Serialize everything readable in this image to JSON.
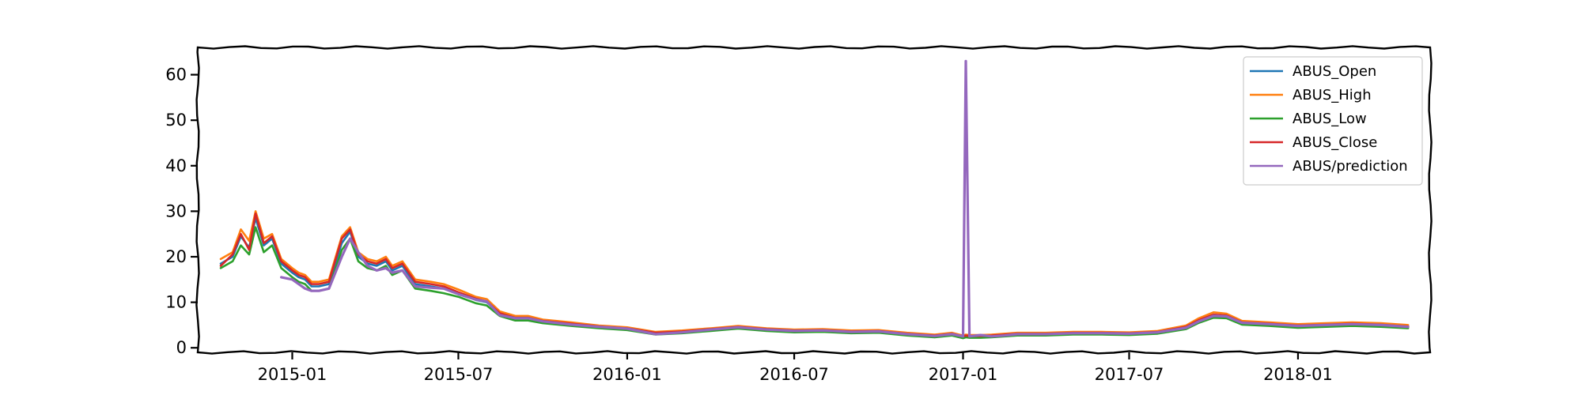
{
  "chart_data": {
    "type": "line",
    "title": "",
    "xlabel": "",
    "ylabel": "",
    "x_axis": "date",
    "xlim": [
      "2014-09-20",
      "2018-05-25"
    ],
    "ylim": [
      -1,
      66
    ],
    "x_ticks": [
      "2015-01",
      "2015-07",
      "2016-01",
      "2016-07",
      "2017-01",
      "2017-07",
      "2018-01"
    ],
    "y_ticks": [
      0,
      10,
      20,
      30,
      40,
      50,
      60
    ],
    "grid": false,
    "legend_position": "top-right",
    "style": "xkcd sketch",
    "dates": [
      "2014-10-15",
      "2014-10-28",
      "2014-11-06",
      "2014-11-15",
      "2014-11-22",
      "2014-12-01",
      "2014-12-10",
      "2014-12-20",
      "2015-01-01",
      "2015-01-08",
      "2015-01-15",
      "2015-01-22",
      "2015-01-30",
      "2015-02-10",
      "2015-02-24",
      "2015-03-05",
      "2015-03-14",
      "2015-03-24",
      "2015-04-03",
      "2015-04-13",
      "2015-04-20",
      "2015-05-01",
      "2015-05-15",
      "2015-06-01",
      "2015-06-15",
      "2015-07-01",
      "2015-07-20",
      "2015-08-01",
      "2015-08-15",
      "2015-09-01",
      "2015-09-15",
      "2015-10-01",
      "2015-11-01",
      "2015-12-01",
      "2016-01-01",
      "2016-02-01",
      "2016-03-01",
      "2016-04-01",
      "2016-05-01",
      "2016-06-01",
      "2016-07-01",
      "2016-08-01",
      "2016-09-01",
      "2016-10-01",
      "2016-11-01",
      "2016-12-01",
      "2016-12-20",
      "2017-01-01",
      "2017-01-04",
      "2017-01-08",
      "2017-01-20",
      "2017-02-01",
      "2017-02-15",
      "2017-03-01",
      "2017-04-01",
      "2017-05-01",
      "2017-06-01",
      "2017-07-01",
      "2017-08-01",
      "2017-09-01",
      "2017-09-15",
      "2017-10-01",
      "2017-10-15",
      "2017-11-01",
      "2017-12-01",
      "2018-01-01",
      "2018-02-01",
      "2018-03-01",
      "2018-04-01",
      "2018-05-01"
    ],
    "series": [
      {
        "name": "ABUS_Open",
        "color": "#1f77b4",
        "values": [
          18.5,
          20.0,
          24.5,
          22.0,
          28.5,
          22.5,
          24.0,
          18.5,
          16.5,
          15.5,
          15.0,
          13.5,
          13.5,
          14.0,
          23.0,
          25.5,
          20.0,
          18.5,
          18.0,
          19.0,
          17.0,
          18.0,
          14.0,
          13.5,
          13.0,
          12.0,
          10.5,
          10.0,
          7.5,
          6.5,
          6.5,
          5.8,
          5.2,
          4.6,
          4.2,
          3.2,
          3.5,
          4.0,
          4.5,
          4.0,
          3.7,
          3.8,
          3.5,
          3.6,
          3.0,
          2.6,
          3.0,
          2.4,
          2.6,
          2.5,
          2.5,
          2.6,
          2.8,
          3.0,
          3.0,
          3.2,
          3.2,
          3.1,
          3.4,
          4.5,
          6.0,
          7.2,
          7.0,
          5.5,
          5.2,
          4.8,
          5.0,
          5.2,
          5.0,
          4.6
        ]
      },
      {
        "name": "ABUS_High",
        "color": "#ff7f0e",
        "values": [
          19.5,
          21.0,
          26.0,
          23.5,
          30.0,
          24.0,
          25.0,
          19.5,
          17.5,
          16.5,
          16.0,
          14.5,
          14.5,
          15.0,
          24.5,
          26.5,
          21.0,
          19.5,
          19.0,
          20.0,
          18.0,
          19.0,
          15.0,
          14.5,
          14.0,
          12.8,
          11.2,
          10.7,
          8.0,
          7.0,
          7.0,
          6.2,
          5.6,
          4.9,
          4.5,
          3.5,
          3.8,
          4.3,
          4.8,
          4.3,
          4.0,
          4.1,
          3.8,
          3.9,
          3.3,
          2.9,
          3.3,
          2.7,
          2.9,
          2.8,
          2.8,
          2.9,
          3.1,
          3.3,
          3.3,
          3.5,
          3.5,
          3.4,
          3.7,
          4.9,
          6.5,
          7.8,
          7.5,
          5.9,
          5.6,
          5.2,
          5.4,
          5.6,
          5.4,
          5.0
        ]
      },
      {
        "name": "ABUS_Low",
        "color": "#2ca02c",
        "values": [
          17.5,
          19.0,
          22.5,
          20.5,
          26.5,
          21.0,
          22.5,
          17.5,
          15.5,
          14.5,
          14.0,
          12.5,
          12.5,
          13.0,
          21.5,
          24.0,
          19.0,
          17.5,
          17.0,
          18.0,
          16.0,
          17.0,
          13.0,
          12.5,
          12.0,
          11.2,
          9.8,
          9.3,
          7.0,
          6.0,
          6.0,
          5.4,
          4.8,
          4.3,
          3.9,
          2.9,
          3.2,
          3.7,
          4.2,
          3.7,
          3.4,
          3.5,
          3.2,
          3.3,
          2.7,
          2.3,
          2.7,
          2.1,
          2.3,
          2.2,
          2.2,
          2.3,
          2.5,
          2.7,
          2.7,
          2.9,
          2.9,
          2.8,
          3.1,
          4.1,
          5.5,
          6.6,
          6.5,
          5.1,
          4.8,
          4.4,
          4.6,
          4.8,
          4.6,
          4.3
        ]
      },
      {
        "name": "ABUS_Close",
        "color": "#d62728",
        "values": [
          18.0,
          20.5,
          25.0,
          21.5,
          29.5,
          23.0,
          24.5,
          19.0,
          17.0,
          16.0,
          15.5,
          14.0,
          14.0,
          14.5,
          24.0,
          26.0,
          20.5,
          19.0,
          18.5,
          19.5,
          17.5,
          18.5,
          14.5,
          14.0,
          13.5,
          12.2,
          10.8,
          10.2,
          7.6,
          6.6,
          6.6,
          5.9,
          5.3,
          4.7,
          4.3,
          3.3,
          3.6,
          4.1,
          4.6,
          4.1,
          3.8,
          3.9,
          3.6,
          3.7,
          3.1,
          2.7,
          3.1,
          2.5,
          2.7,
          2.6,
          2.6,
          2.7,
          2.9,
          3.1,
          3.1,
          3.3,
          3.3,
          3.2,
          3.5,
          4.6,
          6.1,
          7.3,
          7.1,
          5.6,
          5.3,
          4.9,
          5.1,
          5.3,
          5.1,
          4.7
        ]
      },
      {
        "name": "ABUS/prediction",
        "color": "#9467bd",
        "values": [
          null,
          null,
          null,
          null,
          null,
          null,
          null,
          15.5,
          15.0,
          14.0,
          13.0,
          12.5,
          12.5,
          13.0,
          20.0,
          24.0,
          21.0,
          18.0,
          17.0,
          17.5,
          16.5,
          17.0,
          13.5,
          13.2,
          13.0,
          11.8,
          10.6,
          10.2,
          7.2,
          6.5,
          6.5,
          5.8,
          5.1,
          4.6,
          4.2,
          3.0,
          3.4,
          4.0,
          4.5,
          4.0,
          3.7,
          3.8,
          3.5,
          3.6,
          3.0,
          2.6,
          3.0,
          2.5,
          63.0,
          2.5,
          2.8,
          2.5,
          2.7,
          3.0,
          3.0,
          3.2,
          3.2,
          3.1,
          3.4,
          4.4,
          5.8,
          7.0,
          6.9,
          5.5,
          5.2,
          4.8,
          5.0,
          5.2,
          5.0,
          4.6
        ]
      }
    ]
  }
}
